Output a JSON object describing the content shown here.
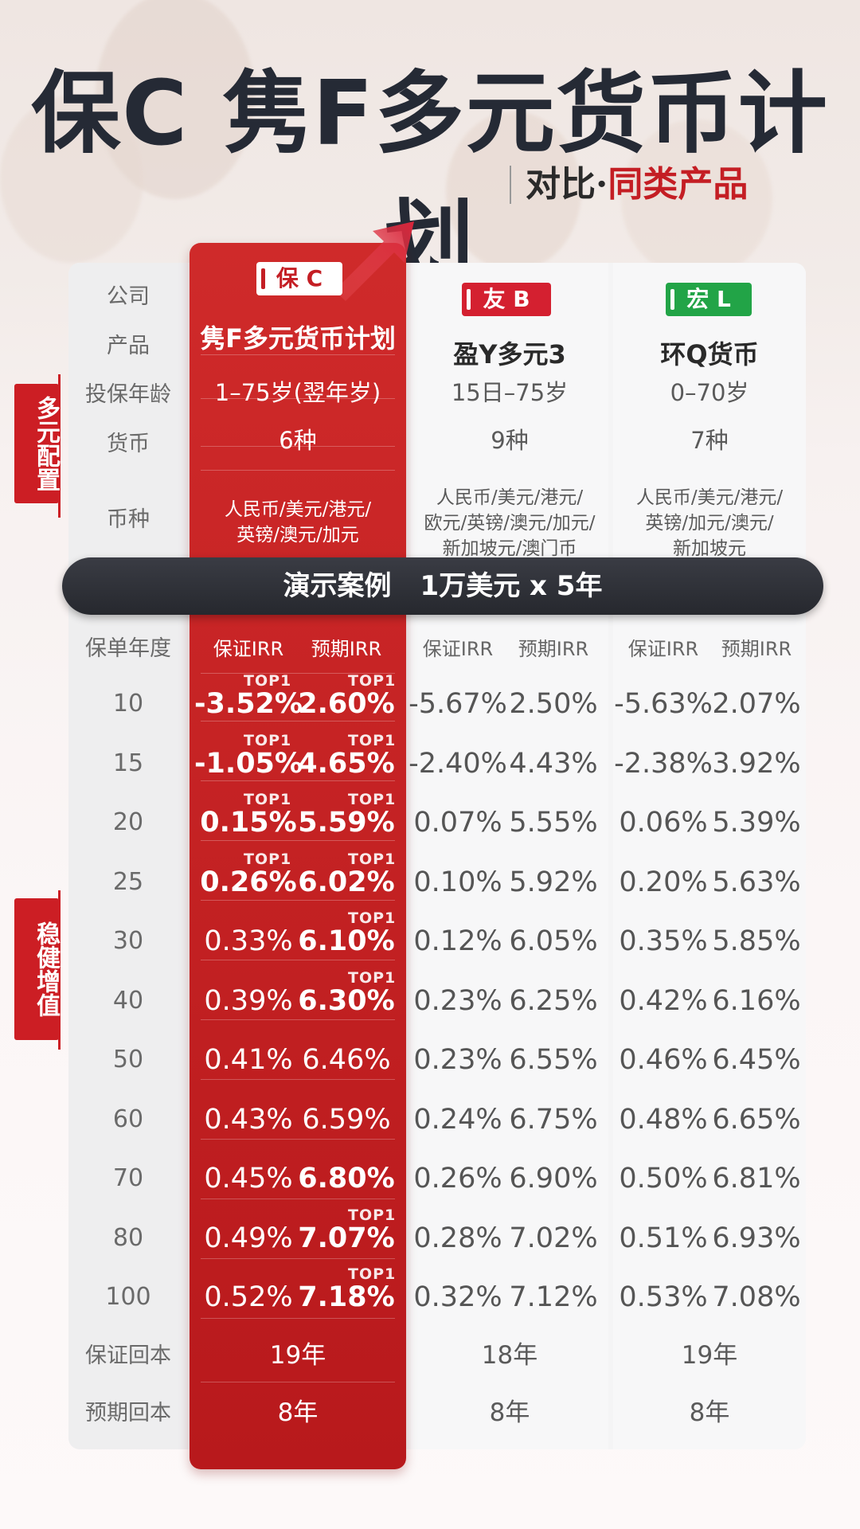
{
  "title": "保C 隽F多元货币计划",
  "subtitle": {
    "prefix": "对比·",
    "highlight": "同类产品"
  },
  "side_tags": [
    "多元配置",
    "稳健增值"
  ],
  "row_labels": {
    "company": "公司",
    "product": "产品",
    "age": "投保年龄",
    "currency_count": "货币",
    "currencies": "币种",
    "policy_year": "保单年度",
    "guaranteed_payback": "保证回本",
    "expected_payback": "预期回本"
  },
  "banner": {
    "left": "演示案例",
    "right": "1万美元 x 5年"
  },
  "col_headers": {
    "guaranteed": "保证IRR",
    "expected": "预期IRR"
  },
  "top_label": "TOP1",
  "products": [
    {
      "company": "保 C",
      "color": "#c41e24",
      "name": "隽F多元货币计划",
      "age": "1–75岁(翌年岁)",
      "currency_count": "6种",
      "currencies": [
        "人民币/美元/港元/",
        "英镑/澳元/加元"
      ],
      "guaranteed_payback": "19年",
      "expected_payback": "8年"
    },
    {
      "company": "友 B",
      "color": "#d42030",
      "name": "盈Y多元3",
      "age": "15日–75岁",
      "currency_count": "9种",
      "currencies": [
        "人民币/美元/港元/",
        "欧元/英镑/澳元/加元/",
        "新加坡元/澳门币"
      ],
      "guaranteed_payback": "18年",
      "expected_payback": "8年"
    },
    {
      "company": "宏 L",
      "color": "#22a447",
      "name": "环Q货币",
      "age": "0–70岁",
      "currency_count": "7种",
      "currencies": [
        "人民币/美元/港元/",
        "英镑/加元/澳元/",
        "新加坡元"
      ],
      "guaranteed_payback": "19年",
      "expected_payback": "8年"
    }
  ],
  "years": [
    "10",
    "15",
    "20",
    "25",
    "30",
    "40",
    "50",
    "60",
    "70",
    "80",
    "100"
  ],
  "irr": [
    {
      "c_g": "-3.52%",
      "c_e": "2.60%",
      "b_g": "-5.67%",
      "b_e": "2.50%",
      "l_g": "-5.63%",
      "l_e": "2.07%",
      "c_g_top": true,
      "c_e_top": true
    },
    {
      "c_g": "-1.05%",
      "c_e": "4.65%",
      "b_g": "-2.40%",
      "b_e": "4.43%",
      "l_g": "-2.38%",
      "l_e": "3.92%",
      "c_g_top": true,
      "c_e_top": true
    },
    {
      "c_g": "0.15%",
      "c_e": "5.59%",
      "b_g": "0.07%",
      "b_e": "5.55%",
      "l_g": "0.06%",
      "l_e": "5.39%",
      "c_g_top": true,
      "c_e_top": true
    },
    {
      "c_g": "0.26%",
      "c_e": "6.02%",
      "b_g": "0.10%",
      "b_e": "5.92%",
      "l_g": "0.20%",
      "l_e": "5.63%",
      "c_g_top": true,
      "c_e_top": true
    },
    {
      "c_g": "0.33%",
      "c_e": "6.10%",
      "b_g": "0.12%",
      "b_e": "6.05%",
      "l_g": "0.35%",
      "l_e": "5.85%",
      "c_g_top": false,
      "c_e_top": true
    },
    {
      "c_g": "0.39%",
      "c_e": "6.30%",
      "b_g": "0.23%",
      "b_e": "6.25%",
      "l_g": "0.42%",
      "l_e": "6.16%",
      "c_g_top": false,
      "c_e_top": true
    },
    {
      "c_g": "0.41%",
      "c_e": "6.46%",
      "b_g": "0.23%",
      "b_e": "6.55%",
      "l_g": "0.46%",
      "l_e": "6.45%",
      "c_g_top": false,
      "c_e_top": false
    },
    {
      "c_g": "0.43%",
      "c_e": "6.59%",
      "b_g": "0.24%",
      "b_e": "6.75%",
      "l_g": "0.48%",
      "l_e": "6.65%",
      "c_g_top": false,
      "c_e_top": false
    },
    {
      "c_g": "0.45%",
      "c_e": "6.80%",
      "b_g": "0.26%",
      "b_e": "6.90%",
      "l_g": "0.50%",
      "l_e": "6.81%",
      "c_g_top": false,
      "c_e_top": false
    },
    {
      "c_g": "0.49%",
      "c_e": "7.07%",
      "b_g": "0.28%",
      "b_e": "7.02%",
      "l_g": "0.51%",
      "l_e": "6.93%",
      "c_g_top": false,
      "c_e_top": true
    },
    {
      "c_g": "0.52%",
      "c_e": "7.18%",
      "b_g": "0.32%",
      "b_e": "7.12%",
      "l_g": "0.53%",
      "l_e": "7.08%",
      "c_g_top": false,
      "c_e_top": true
    }
  ]
}
